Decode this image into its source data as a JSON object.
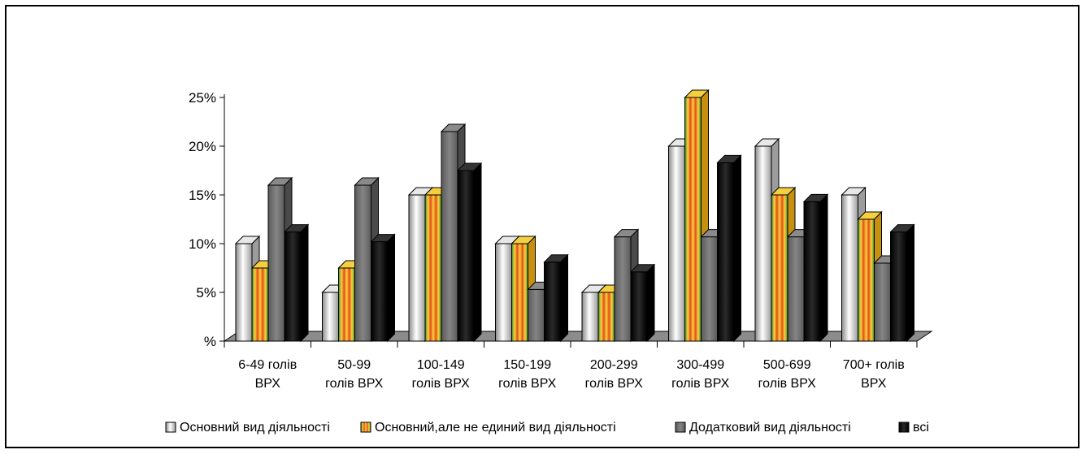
{
  "chart_data": {
    "type": "bar",
    "title": "",
    "xlabel": "",
    "ylabel": "",
    "ylim": [
      0,
      25
    ],
    "yticks": [
      {
        "value": 0,
        "label": "%"
      },
      {
        "value": 5,
        "label": "5%"
      },
      {
        "value": 10,
        "label": "10%"
      },
      {
        "value": 15,
        "label": "15%"
      },
      {
        "value": 20,
        "label": "20%"
      },
      {
        "value": 25,
        "label": "25%"
      }
    ],
    "categories": [
      [
        "6-49 голів",
        "ВРХ"
      ],
      [
        "50-99",
        "голів ВРХ"
      ],
      [
        "100-149",
        "голів ВРХ"
      ],
      [
        "150-199",
        "голів ВРХ"
      ],
      [
        "200-299",
        "голів ВРХ"
      ],
      [
        "300-499",
        "голів ВРХ"
      ],
      [
        "500-699",
        "голів ВРХ"
      ],
      [
        "700+ голів",
        "ВРХ"
      ]
    ],
    "series": [
      {
        "name": "Основний вид діяльності",
        "values": [
          10,
          5,
          15,
          10,
          5,
          20,
          20,
          15
        ],
        "color": "#c8c8c8"
      },
      {
        "name": "Основний,але не единий вид діяльності",
        "values": [
          7.5,
          7.5,
          15,
          10,
          5,
          25,
          15,
          12.5
        ],
        "color": "#f0c020"
      },
      {
        "name": "Додатковий  вид діяльності",
        "values": [
          16,
          16,
          21.5,
          5.3,
          10.7,
          10.7,
          10.7,
          8
        ],
        "color": "#6e6e6e"
      },
      {
        "name": "всі",
        "values": [
          11.2,
          10.2,
          17.5,
          8.1,
          7.1,
          18.3,
          14.3,
          11.2
        ],
        "color": "#111111"
      }
    ],
    "grid": false,
    "legend_position": "bottom"
  }
}
